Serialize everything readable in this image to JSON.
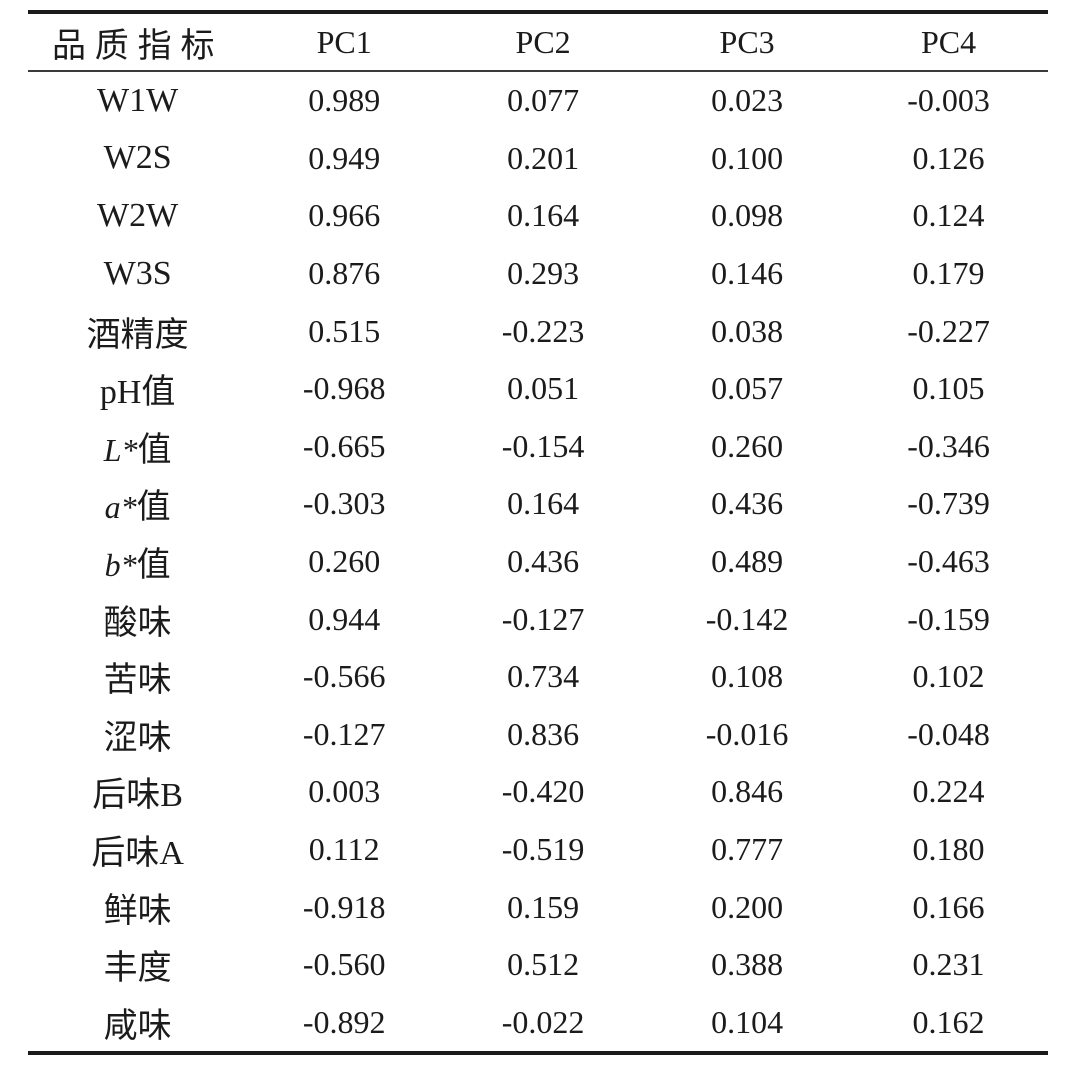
{
  "table": {
    "columns": [
      "品质指标",
      "PC1",
      "PC2",
      "PC3",
      "PC4"
    ],
    "rows": [
      {
        "label_em": "",
        "label": "W1W",
        "pc1": "0.989",
        "pc2": "0.077",
        "pc3": "0.023",
        "pc4": "-0.003"
      },
      {
        "label_em": "",
        "label": "W2S",
        "pc1": "0.949",
        "pc2": "0.201",
        "pc3": "0.100",
        "pc4": "0.126"
      },
      {
        "label_em": "",
        "label": "W2W",
        "pc1": "0.966",
        "pc2": "0.164",
        "pc3": "0.098",
        "pc4": "0.124"
      },
      {
        "label_em": "",
        "label": "W3S",
        "pc1": "0.876",
        "pc2": "0.293",
        "pc3": "0.146",
        "pc4": "0.179"
      },
      {
        "label_em": "",
        "label": "酒精度",
        "pc1": "0.515",
        "pc2": "-0.223",
        "pc3": "0.038",
        "pc4": "-0.227"
      },
      {
        "label_em": "",
        "label": "pH值",
        "pc1": "-0.968",
        "pc2": "0.051",
        "pc3": "0.057",
        "pc4": "0.105"
      },
      {
        "label_em": "L*",
        "label": "值",
        "pc1": "-0.665",
        "pc2": "-0.154",
        "pc3": "0.260",
        "pc4": "-0.346"
      },
      {
        "label_em": "a*",
        "label": "值",
        "pc1": "-0.303",
        "pc2": "0.164",
        "pc3": "0.436",
        "pc4": "-0.739"
      },
      {
        "label_em": "b*",
        "label": "值",
        "pc1": "0.260",
        "pc2": "0.436",
        "pc3": "0.489",
        "pc4": "-0.463"
      },
      {
        "label_em": "",
        "label": "酸味",
        "pc1": "0.944",
        "pc2": "-0.127",
        "pc3": "-0.142",
        "pc4": "-0.159"
      },
      {
        "label_em": "",
        "label": "苦味",
        "pc1": "-0.566",
        "pc2": "0.734",
        "pc3": "0.108",
        "pc4": "0.102"
      },
      {
        "label_em": "",
        "label": "涩味",
        "pc1": "-0.127",
        "pc2": "0.836",
        "pc3": "-0.016",
        "pc4": "-0.048"
      },
      {
        "label_em": "",
        "label": "后味B",
        "pc1": "0.003",
        "pc2": "-0.420",
        "pc3": "0.846",
        "pc4": "0.224"
      },
      {
        "label_em": "",
        "label": "后味A",
        "pc1": "0.112",
        "pc2": "-0.519",
        "pc3": "0.777",
        "pc4": "0.180"
      },
      {
        "label_em": "",
        "label": "鲜味",
        "pc1": "-0.918",
        "pc2": "0.159",
        "pc3": "0.200",
        "pc4": "0.166"
      },
      {
        "label_em": "",
        "label": "丰度",
        "pc1": "-0.560",
        "pc2": "0.512",
        "pc3": "0.388",
        "pc4": "0.231"
      },
      {
        "label_em": "",
        "label": "咸味",
        "pc1": "-0.892",
        "pc2": "-0.022",
        "pc3": "0.104",
        "pc4": "0.162"
      }
    ]
  }
}
